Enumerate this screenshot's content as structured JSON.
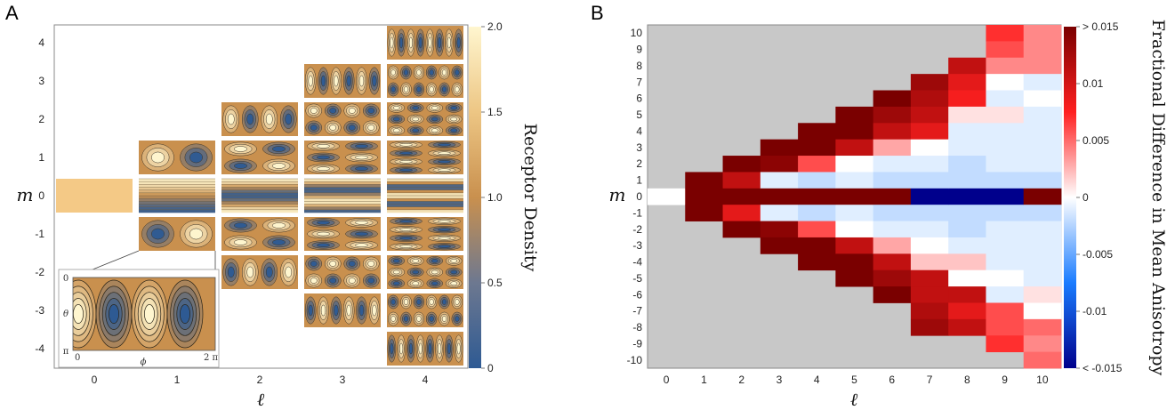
{
  "panels": [
    {
      "letter": "A"
    },
    {
      "letter": "B"
    }
  ],
  "chart_data": [
    {
      "type": "heatmap",
      "description_key": "panelA",
      "xlabel": "ℓ",
      "ylabel": "m",
      "x_ticks": [
        "0",
        "1",
        "2",
        "3",
        "4"
      ],
      "y_ticks": [
        "4",
        "3",
        "2",
        "1",
        "0",
        "-1",
        "-2",
        "-3",
        "-4"
      ],
      "colorbar": {
        "label": "Receptor Density",
        "ticks": [
          "2.0",
          "1.5",
          "1.0",
          "0.5",
          "0"
        ],
        "range": [
          0,
          2.0
        ],
        "low_color": "#2e5a93",
        "mid_color": "#c9904e",
        "high_color": "#fff6cf"
      },
      "inset": {
        "x_start": "0",
        "x_end": "2 π",
        "xlabel": "ϕ",
        "y_start": "0",
        "y_end": "π",
        "ylabel": "θ",
        "source_l": 1,
        "source_m": -1
      },
      "tiles": [
        {
          "l": 0,
          "m": 0
        },
        {
          "l": 1,
          "m": 1
        },
        {
          "l": 1,
          "m": 0
        },
        {
          "l": 1,
          "m": -1
        },
        {
          "l": 2,
          "m": 2
        },
        {
          "l": 2,
          "m": 1
        },
        {
          "l": 2,
          "m": 0
        },
        {
          "l": 2,
          "m": -1
        },
        {
          "l": 2,
          "m": -2
        },
        {
          "l": 3,
          "m": 3
        },
        {
          "l": 3,
          "m": 2
        },
        {
          "l": 3,
          "m": 1
        },
        {
          "l": 3,
          "m": 0
        },
        {
          "l": 3,
          "m": -1
        },
        {
          "l": 3,
          "m": -2
        },
        {
          "l": 3,
          "m": -3
        },
        {
          "l": 4,
          "m": 4
        },
        {
          "l": 4,
          "m": 3
        },
        {
          "l": 4,
          "m": 2
        },
        {
          "l": 4,
          "m": 1
        },
        {
          "l": 4,
          "m": 0
        },
        {
          "l": 4,
          "m": -1
        },
        {
          "l": 4,
          "m": -2
        },
        {
          "l": 4,
          "m": -3
        },
        {
          "l": 4,
          "m": -4
        }
      ]
    },
    {
      "type": "heatmap",
      "description_key": "panelB",
      "xlabel": "ℓ",
      "ylabel": "m",
      "x": [
        0,
        1,
        2,
        3,
        4,
        5,
        6,
        7,
        8,
        9,
        10
      ],
      "y": [
        10,
        9,
        8,
        7,
        6,
        5,
        4,
        3,
        2,
        1,
        0,
        -1,
        -2,
        -3,
        -4,
        -5,
        -6,
        -7,
        -8,
        -9,
        -10
      ],
      "y_tick_labels": [
        "10",
        "9",
        "8",
        "7",
        "6",
        "5",
        "4",
        "3",
        "2",
        "1",
        "0",
        "-1",
        "-2",
        "-3",
        "-4",
        "-5",
        "-6",
        "-7",
        "-8",
        "-9",
        "-10"
      ],
      "colorbar": {
        "label": "Fractional Difference in Mean Anisotropy",
        "ticks": [
          "> 0.015",
          "0.01",
          "0.005",
          "0",
          "-0.005",
          "-0.01",
          "< -0.015"
        ],
        "range": [
          -0.015,
          0.015
        ]
      },
      "undefined_color": "#c8c8c8",
      "values_by_l": {
        "0": {
          "0": 0
        },
        "1": {
          "1": 0.016,
          "0": 0.016,
          "-1": 0.016
        },
        "2": {
          "2": 0.016,
          "1": 0.011,
          "0": 0.016,
          "-1": 0.009,
          "-2": 0.016
        },
        "3": {
          "3": 0.016,
          "2": 0.014,
          "1": -0.001,
          "0": 0.016,
          "-1": -0.001,
          "-2": 0.014,
          "-3": 0.016
        },
        "4": {
          "4": 0.016,
          "3": 0.016,
          "2": 0.006,
          "1": -0.002,
          "0": 0.016,
          "-1": -0.002,
          "-2": 0.006,
          "-3": 0.016,
          "-4": 0.016
        },
        "5": {
          "5": 0.016,
          "4": 0.016,
          "3": 0.011,
          "2": 0.0,
          "1": -0.001,
          "0": 0.016,
          "-1": -0.001,
          "-2": 0.0,
          "-3": 0.011,
          "-4": 0.016,
          "-5": 0.016
        },
        "6": {
          "6": 0.016,
          "5": 0.013,
          "4": 0.011,
          "3": 0.003,
          "2": -0.001,
          "1": -0.002,
          "0": 0.016,
          "-1": -0.002,
          "-2": -0.001,
          "-3": 0.003,
          "-4": 0.011,
          "-5": 0.013,
          "-6": 0.016
        },
        "7": {
          "7": 0.013,
          "6": 0.012,
          "5": 0.011,
          "4": 0.009,
          "3": 0.0,
          "2": -0.001,
          "1": -0.002,
          "0": -0.016,
          "-1": -0.002,
          "-2": -0.001,
          "-3": 0.0,
          "-4": 0.002,
          "-5": 0.011,
          "-6": 0.011,
          "-7": 0.012,
          "-8": 0.013
        },
        "8": {
          "8": 0.011,
          "7": 0.009,
          "6": 0.008,
          "5": 0.001,
          "4": -0.001,
          "3": -0.001,
          "2": -0.002,
          "1": -0.002,
          "0": -0.016,
          "-1": -0.002,
          "-2": -0.002,
          "-3": -0.001,
          "-4": 0.002,
          "-5": 0.0,
          "-6": 0.011,
          "-7": 0.009,
          "-8": 0.011
        },
        "9": {
          "10": 0.007,
          "9": 0.006,
          "8": 0.004,
          "7": 0.0,
          "6": -0.001,
          "5": 0.001,
          "4": -0.001,
          "3": -0.001,
          "2": -0.001,
          "1": -0.002,
          "0": -0.016,
          "-1": -0.002,
          "-2": -0.001,
          "-3": -0.001,
          "-4": -0.001,
          "-5": 0.0,
          "-6": -0.001,
          "-7": 0.006,
          "-8": 0.006,
          "-9": 0.007
        },
        "10": {
          "10": 0.004,
          "9": 0.004,
          "8": 0.004,
          "7": -0.001,
          "6": 0.0,
          "5": -0.001,
          "4": -0.001,
          "3": -0.001,
          "2": -0.001,
          "1": -0.002,
          "0": 0.016,
          "-1": -0.002,
          "-2": -0.001,
          "-3": -0.001,
          "-4": -0.001,
          "-5": -0.001,
          "-6": 0.001,
          "-7": 0.0,
          "-8": 0.005,
          "-9": 0.004,
          "-10": 0.005
        }
      }
    }
  ]
}
